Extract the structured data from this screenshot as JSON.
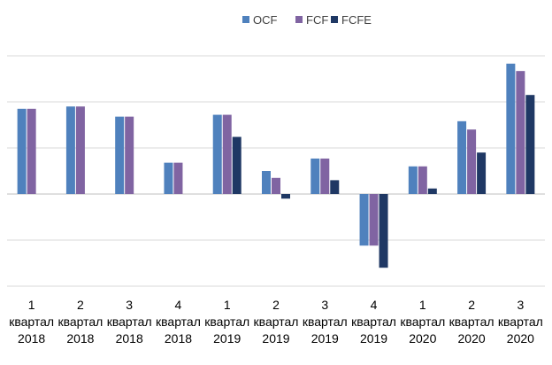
{
  "chart_data": {
    "type": "bar",
    "categories": [
      [
        "1",
        "квартал",
        "2018"
      ],
      [
        "2",
        "квартал",
        "2018"
      ],
      [
        "3",
        "квартал",
        "2018"
      ],
      [
        "4",
        "квартал",
        "2018"
      ],
      [
        "1",
        "квартал",
        "2019"
      ],
      [
        "2",
        "квартал",
        "2019"
      ],
      [
        "3",
        "квартал",
        "2019"
      ],
      [
        "4",
        "квартал",
        "2019"
      ],
      [
        "1",
        "квартал",
        "2020"
      ],
      [
        "2",
        "квартал",
        "2020"
      ],
      [
        "3",
        "квартал",
        "2020"
      ]
    ],
    "series": [
      {
        "name": "OCF",
        "color": "#4f81bd",
        "values": [
          1.85,
          1.9,
          1.68,
          0.68,
          1.72,
          0.5,
          0.77,
          -1.12,
          0.6,
          1.58,
          2.83
        ]
      },
      {
        "name": "FCF",
        "color": "#8064a2",
        "values": [
          1.85,
          1.9,
          1.68,
          0.68,
          1.72,
          0.35,
          0.77,
          -1.12,
          0.6,
          1.4,
          2.67
        ]
      },
      {
        "name": "FCFE",
        "color": "#1f3864",
        "values": [
          null,
          null,
          null,
          null,
          1.24,
          -0.1,
          0.3,
          -1.6,
          0.12,
          0.9,
          2.15
        ]
      }
    ],
    "ylim": [
      -2,
      3
    ],
    "gridlines": true,
    "legend_position": "top",
    "xlabel": "",
    "ylabel": ""
  }
}
